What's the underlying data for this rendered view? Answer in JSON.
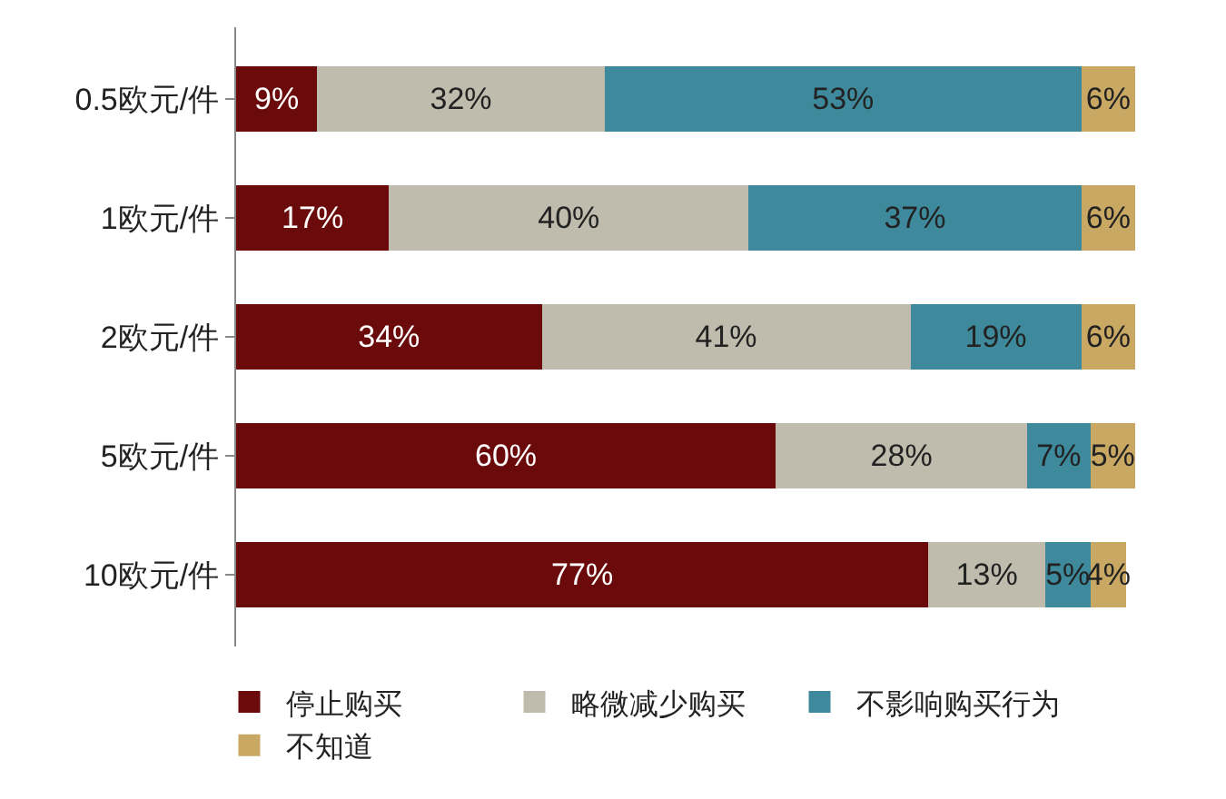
{
  "chart_data": {
    "type": "bar",
    "orientation": "horizontal",
    "stacked": true,
    "categories": [
      "0.5欧元/件",
      "1欧元/件",
      "2欧元/件",
      "5欧元/件",
      "10欧元/件"
    ],
    "series": [
      {
        "name": "停止购买",
        "color": "#6b0a0a",
        "values": [
          9,
          17,
          34,
          60,
          77
        ],
        "value_labels": [
          "9%",
          "17%",
          "34%",
          "60%",
          "77%"
        ]
      },
      {
        "name": "略微减少购买",
        "color": "#bfbcad",
        "values": [
          32,
          40,
          41,
          28,
          13
        ],
        "value_labels": [
          "32%",
          "40%",
          "41%",
          "28%",
          "13%"
        ]
      },
      {
        "name": "不影响购买行为",
        "color": "#3e8a9c",
        "values": [
          53,
          37,
          19,
          7,
          5
        ],
        "value_labels": [
          "53%",
          "37%",
          "19%",
          "7%",
          "5%"
        ]
      },
      {
        "name": "不知道",
        "color": "#c9a864",
        "values": [
          6,
          6,
          6,
          5,
          4
        ],
        "value_labels": [
          "6%",
          "6%",
          "6%",
          "5%",
          "4%"
        ]
      }
    ],
    "legend": "bottom",
    "tick_labels": "y"
  }
}
